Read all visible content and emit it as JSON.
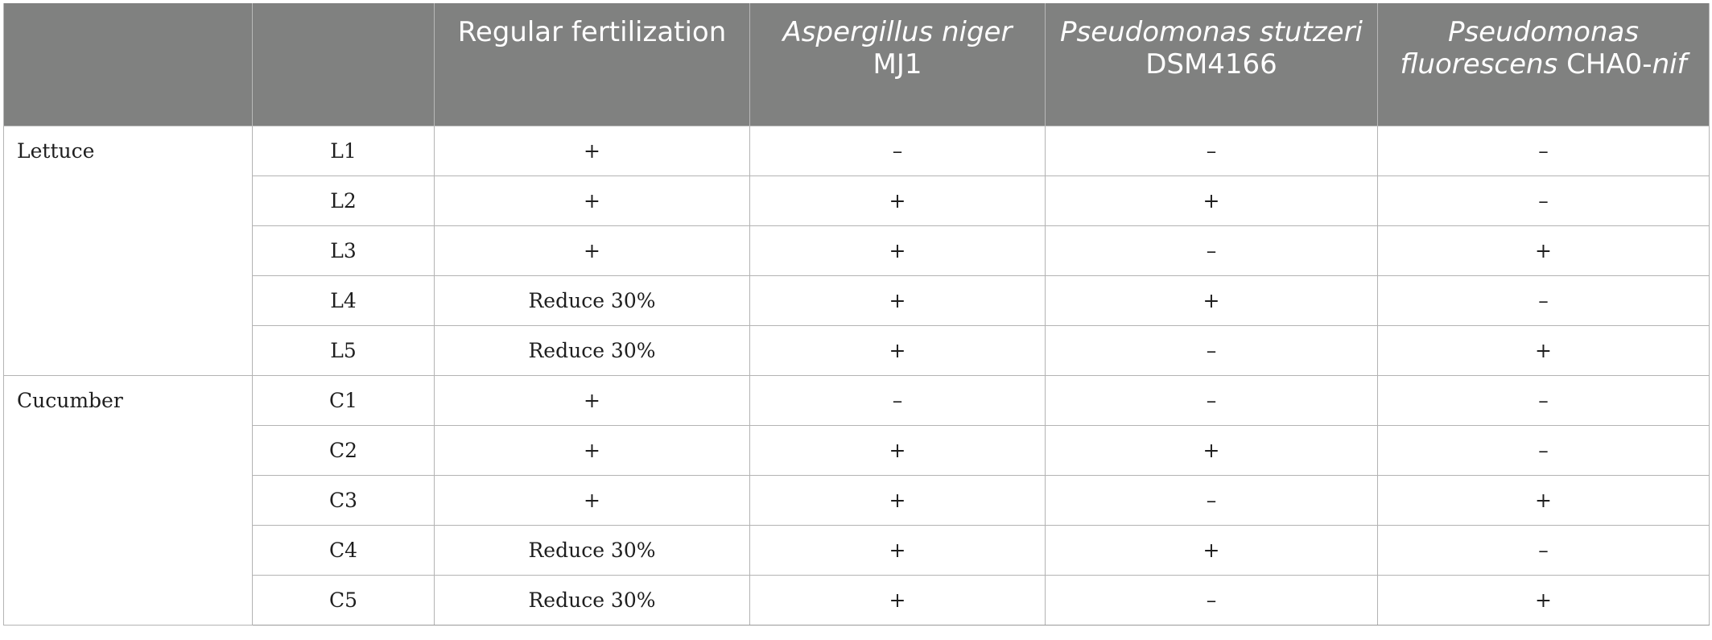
{
  "header": {
    "col0": "",
    "col1": "",
    "col2": "Regular fertilization",
    "col3_italic": "Aspergillus niger",
    "col3_plain": "MJ1",
    "col4_italic": "Pseudomonas stutzeri",
    "col4_plain": "DSM4166",
    "col5_italic_a": "Pseudomonas fluorescens",
    "col5_plain": "CHA0-",
    "col5_italic_b": "nif"
  },
  "groups": [
    {
      "crop": "Lettuce",
      "rows": [
        {
          "id": "L1",
          "regular": "+",
          "aniger": "–",
          "pstutzeri": "–",
          "pfluor": "–"
        },
        {
          "id": "L2",
          "regular": "+",
          "aniger": "+",
          "pstutzeri": "+",
          "pfluor": "–"
        },
        {
          "id": "L3",
          "regular": "+",
          "aniger": "+",
          "pstutzeri": "–",
          "pfluor": "+"
        },
        {
          "id": "L4",
          "regular": "Reduce 30%",
          "aniger": "+",
          "pstutzeri": "+",
          "pfluor": "–"
        },
        {
          "id": "L5",
          "regular": "Reduce 30%",
          "aniger": "+",
          "pstutzeri": "–",
          "pfluor": "+"
        }
      ]
    },
    {
      "crop": "Cucumber",
      "rows": [
        {
          "id": "C1",
          "regular": "+",
          "aniger": "–",
          "pstutzeri": "–",
          "pfluor": "–"
        },
        {
          "id": "C2",
          "regular": "+",
          "aniger": "+",
          "pstutzeri": "+",
          "pfluor": "–"
        },
        {
          "id": "C3",
          "regular": "+",
          "aniger": "+",
          "pstutzeri": "–",
          "pfluor": "+"
        },
        {
          "id": "C4",
          "regular": "Reduce 30%",
          "aniger": "+",
          "pstutzeri": "+",
          "pfluor": "–"
        },
        {
          "id": "C5",
          "regular": "Reduce 30%",
          "aniger": "+",
          "pstutzeri": "–",
          "pfluor": "+"
        }
      ]
    }
  ]
}
